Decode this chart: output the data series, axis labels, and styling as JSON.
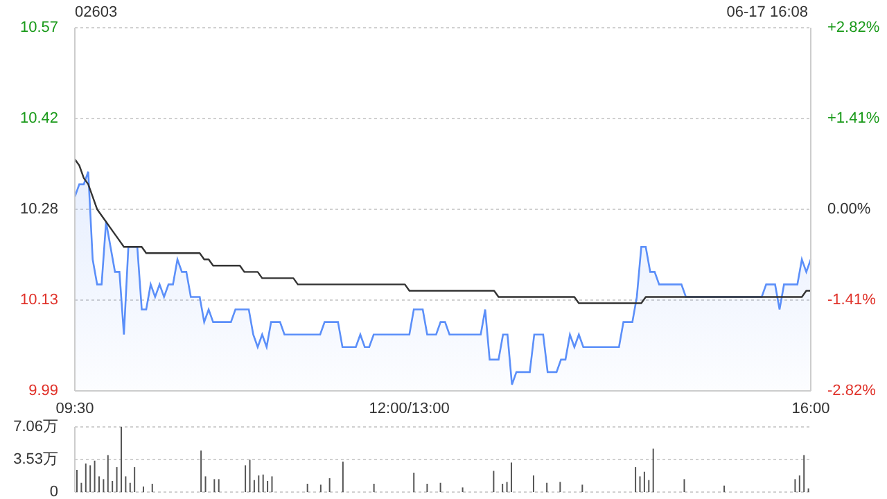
{
  "chart_data": [
    {
      "type": "line",
      "title": "02603",
      "annotations": [
        "06-17 16:08"
      ],
      "categories": [
        "09:30",
        null,
        null,
        null,
        null,
        null,
        null,
        null,
        null,
        null,
        null,
        null,
        null,
        null,
        null,
        null,
        null,
        null,
        null,
        null,
        null,
        null,
        null,
        null,
        null,
        null,
        null,
        null,
        null,
        null,
        null,
        null,
        null,
        null,
        null,
        null,
        null,
        null,
        null,
        null,
        null,
        null,
        null,
        null,
        null,
        null,
        null,
        null,
        null,
        null,
        null,
        null,
        null,
        null,
        null,
        null,
        null,
        null,
        null,
        null,
        null,
        null,
        null,
        null,
        null,
        null,
        null,
        null,
        null,
        null,
        null,
        null,
        null,
        null,
        null,
        "12:00/13:00",
        null,
        null,
        null,
        null,
        null,
        null,
        null,
        null,
        null,
        null,
        null,
        null,
        null,
        null,
        null,
        null,
        null,
        null,
        null,
        null,
        null,
        null,
        null,
        null,
        null,
        null,
        null,
        null,
        null,
        null,
        null,
        null,
        null,
        null,
        null,
        null,
        null,
        null,
        null,
        null,
        null,
        null,
        null,
        null,
        null,
        null,
        null,
        null,
        null,
        null,
        null,
        null,
        null,
        null,
        null,
        null,
        null,
        null,
        null,
        null,
        null,
        null,
        null,
        null,
        null,
        null,
        null,
        null,
        null,
        null,
        null,
        null,
        null,
        null,
        null,
        null,
        null,
        null,
        null,
        null,
        null,
        null,
        null,
        null,
        null,
        null,
        null,
        null,
        null,
        "16:00"
      ],
      "ylim": [
        9.99,
        10.57
      ],
      "yticks": [
        9.99,
        {
          "value": 10.135,
          "label": "10.13"
        },
        10.28,
        {
          "value": 10.425,
          "label": "10.42"
        },
        10.57
      ],
      "y2lim": [
        -2.82,
        2.82
      ],
      "y2ticks": [
        {
          "value": -2.82,
          "label": "-2.82%"
        },
        {
          "value": -1.41,
          "label": "-1.41%"
        },
        {
          "value": 0,
          "label": "0.00%"
        },
        {
          "value": 1.41,
          "label": "+1.41%"
        },
        {
          "value": 2.82,
          "label": "+2.82%"
        }
      ],
      "grid": "y",
      "series": [
        {
          "type": "area",
          "color": "#5b8ff9",
          "values": [
            10.3,
            10.32,
            10.32,
            10.34,
            10.2,
            10.16,
            10.16,
            10.26,
            10.22,
            10.18,
            10.18,
            10.08,
            10.22,
            10.22,
            10.22,
            10.12,
            10.12,
            10.16,
            10.14,
            10.16,
            10.14,
            10.16,
            10.16,
            10.2,
            10.18,
            10.18,
            10.14,
            10.14,
            10.14,
            10.1,
            10.12,
            10.1,
            10.1,
            10.1,
            10.1,
            10.1,
            10.12,
            10.12,
            10.12,
            10.12,
            10.08,
            10.06,
            10.08,
            10.06,
            10.1,
            10.1,
            10.1,
            10.08,
            10.08,
            10.08,
            10.08,
            10.08,
            10.08,
            10.08,
            10.08,
            10.08,
            10.1,
            10.1,
            10.1,
            10.1,
            10.06,
            10.06,
            10.06,
            10.06,
            10.08,
            10.06,
            10.06,
            10.08,
            10.08,
            10.08,
            10.08,
            10.08,
            10.08,
            10.08,
            10.08,
            10.08,
            10.12,
            10.12,
            10.12,
            10.08,
            10.08,
            10.08,
            10.1,
            10.1,
            10.08,
            10.08,
            10.08,
            10.08,
            10.08,
            10.08,
            10.08,
            10.08,
            10.12,
            10.04,
            10.04,
            10.04,
            10.08,
            10.08,
            10.0,
            10.02,
            10.02,
            10.02,
            10.02,
            10.08,
            10.08,
            10.08,
            10.02,
            10.02,
            10.02,
            10.04,
            10.04,
            10.08,
            10.06,
            10.08,
            10.06,
            10.06,
            10.06,
            10.06,
            10.06,
            10.06,
            10.06,
            10.06,
            10.06,
            10.1,
            10.1,
            10.1,
            10.14,
            10.22,
            10.22,
            10.18,
            10.18,
            10.16,
            10.16,
            10.16,
            10.16,
            10.16,
            10.16,
            10.14,
            10.14,
            10.14,
            10.14,
            10.14,
            10.14,
            10.14,
            10.14,
            10.14,
            10.14,
            10.14,
            10.14,
            10.14,
            10.14,
            10.14,
            10.14,
            10.14,
            10.14,
            10.16,
            10.16,
            10.16,
            10.12,
            10.16,
            10.16,
            10.16,
            10.16,
            10.2,
            10.18,
            10.2
          ]
        },
        {
          "type": "line",
          "color": "#333333",
          "values": [
            10.36,
            10.35,
            10.33,
            10.32,
            10.3,
            10.28,
            10.27,
            10.26,
            10.25,
            10.24,
            10.23,
            10.22,
            10.22,
            10.22,
            10.22,
            10.22,
            10.21,
            10.21,
            10.21,
            10.21,
            10.21,
            10.21,
            10.21,
            10.21,
            10.21,
            10.21,
            10.21,
            10.21,
            10.21,
            10.2,
            10.2,
            10.19,
            10.19,
            10.19,
            10.19,
            10.19,
            10.19,
            10.19,
            10.18,
            10.18,
            10.18,
            10.18,
            10.17,
            10.17,
            10.17,
            10.17,
            10.17,
            10.17,
            10.17,
            10.17,
            10.16,
            10.16,
            10.16,
            10.16,
            10.16,
            10.16,
            10.16,
            10.16,
            10.16,
            10.16,
            10.16,
            10.16,
            10.16,
            10.16,
            10.16,
            10.16,
            10.16,
            10.16,
            10.16,
            10.16,
            10.16,
            10.16,
            10.16,
            10.16,
            10.16,
            10.15,
            10.15,
            10.15,
            10.15,
            10.15,
            10.15,
            10.15,
            10.15,
            10.15,
            10.15,
            10.15,
            10.15,
            10.15,
            10.15,
            10.15,
            10.15,
            10.15,
            10.15,
            10.15,
            10.15,
            10.14,
            10.14,
            10.14,
            10.14,
            10.14,
            10.14,
            10.14,
            10.14,
            10.14,
            10.14,
            10.14,
            10.14,
            10.14,
            10.14,
            10.14,
            10.14,
            10.14,
            10.14,
            10.13,
            10.13,
            10.13,
            10.13,
            10.13,
            10.13,
            10.13,
            10.13,
            10.13,
            10.13,
            10.13,
            10.13,
            10.13,
            10.13,
            10.13,
            10.14,
            10.14,
            10.14,
            10.14,
            10.14,
            10.14,
            10.14,
            10.14,
            10.14,
            10.14,
            10.14,
            10.14,
            10.14,
            10.14,
            10.14,
            10.14,
            10.14,
            10.14,
            10.14,
            10.14,
            10.14,
            10.14,
            10.14,
            10.14,
            10.14,
            10.14,
            10.14,
            10.14,
            10.14,
            10.14,
            10.14,
            10.14,
            10.14,
            10.14,
            10.14,
            10.14,
            10.15,
            10.15
          ]
        }
      ]
    },
    {
      "type": "bar",
      "color": "#555555",
      "ylim": [
        0,
        7.06
      ],
      "yticks": [
        0,
        {
          "value": 3.53,
          "label": "3.53万"
        },
        {
          "value": 7.06,
          "label": "7.06万"
        }
      ],
      "grid": "y",
      "tick_labels": "y",
      "values": [
        2.4,
        1,
        3.1,
        2.9,
        3.4,
        1.7,
        1.4,
        4,
        1.2,
        2.7,
        7.06,
        1.7,
        1,
        2.7,
        null,
        0.6,
        null,
        0.9,
        null,
        null,
        null,
        null,
        null,
        null,
        null,
        null,
        null,
        null,
        4.5,
        1.7,
        null,
        1.4,
        1.4,
        null,
        null,
        null,
        null,
        null,
        2.9,
        3.5,
        1.3,
        1.8,
        1.9,
        1.2,
        1.7,
        null,
        null,
        null,
        null,
        null,
        null,
        null,
        0.9,
        null,
        null,
        0.8,
        null,
        1.5,
        null,
        null,
        3.3,
        null,
        null,
        null,
        null,
        null,
        null,
        0.9,
        null,
        null,
        null,
        null,
        null,
        null,
        null,
        null,
        2.1,
        null,
        null,
        0.9,
        null,
        null,
        1,
        null,
        null,
        null,
        null,
        0.5,
        null,
        null,
        null,
        null,
        null,
        null,
        2.3,
        null,
        0.9,
        1.1,
        3.2,
        null,
        null,
        null,
        null,
        1.8,
        null,
        null,
        1,
        null,
        null,
        1.1,
        null,
        null,
        null,
        null,
        0.8,
        null,
        null,
        null,
        null,
        null,
        null,
        null,
        null,
        null,
        null,
        null,
        2.7,
        1.7,
        2.2,
        1.3,
        4.7,
        null,
        null,
        null,
        null,
        null,
        null,
        1.4,
        null,
        null,
        null,
        null,
        null,
        null,
        null,
        null,
        0.7,
        null,
        null,
        null,
        null,
        null,
        null,
        null,
        null,
        null,
        null,
        null,
        null,
        null,
        null,
        null,
        1.4,
        1.8,
        4,
        0.4
      ]
    }
  ]
}
